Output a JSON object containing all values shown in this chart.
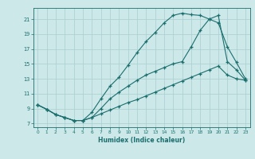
{
  "xlabel": "Humidex (Indice chaleur)",
  "xlim": [
    -0.5,
    23.5
  ],
  "ylim": [
    6.5,
    22.5
  ],
  "xticks": [
    0,
    1,
    2,
    3,
    4,
    5,
    6,
    7,
    8,
    9,
    10,
    11,
    12,
    13,
    14,
    15,
    16,
    17,
    18,
    19,
    20,
    21,
    22,
    23
  ],
  "yticks": [
    7,
    9,
    11,
    13,
    15,
    17,
    19,
    21
  ],
  "background_color": "#cde8e8",
  "grid_color": "#aacece",
  "line_color": "#1a6e6e",
  "line1_x": [
    0,
    1,
    2,
    3,
    4,
    5,
    6,
    7,
    8,
    9,
    10,
    11,
    12,
    13,
    14,
    15,
    16,
    17,
    18,
    19,
    20,
    21,
    22,
    23
  ],
  "line1_y": [
    9.5,
    8.9,
    8.2,
    7.8,
    7.4,
    7.4,
    8.5,
    10.3,
    12.0,
    13.2,
    14.8,
    16.5,
    18.0,
    19.2,
    20.5,
    21.5,
    21.8,
    21.6,
    21.5,
    21.0,
    20.5,
    17.3,
    15.2,
    13.0
  ],
  "line2_x": [
    0,
    1,
    2,
    3,
    4,
    5,
    6,
    7,
    8,
    9,
    10,
    11,
    12,
    13,
    14,
    15,
    16,
    17,
    18,
    19,
    20,
    21,
    22,
    23
  ],
  "line2_y": [
    9.5,
    8.9,
    8.2,
    7.8,
    7.4,
    7.4,
    7.8,
    9.0,
    10.3,
    11.2,
    12.0,
    12.8,
    13.5,
    14.0,
    14.5,
    15.0,
    15.3,
    17.3,
    19.5,
    21.0,
    21.5,
    15.3,
    14.2,
    12.8
  ],
  "line3_x": [
    0,
    1,
    2,
    3,
    4,
    5,
    6,
    7,
    8,
    9,
    10,
    11,
    12,
    13,
    14,
    15,
    16,
    17,
    18,
    19,
    20,
    21,
    22,
    23
  ],
  "line3_y": [
    9.5,
    8.9,
    8.2,
    7.8,
    7.4,
    7.4,
    7.8,
    8.3,
    8.8,
    9.3,
    9.8,
    10.2,
    10.7,
    11.2,
    11.7,
    12.2,
    12.7,
    13.2,
    13.7,
    14.2,
    14.7,
    13.5,
    13.0,
    12.8
  ]
}
